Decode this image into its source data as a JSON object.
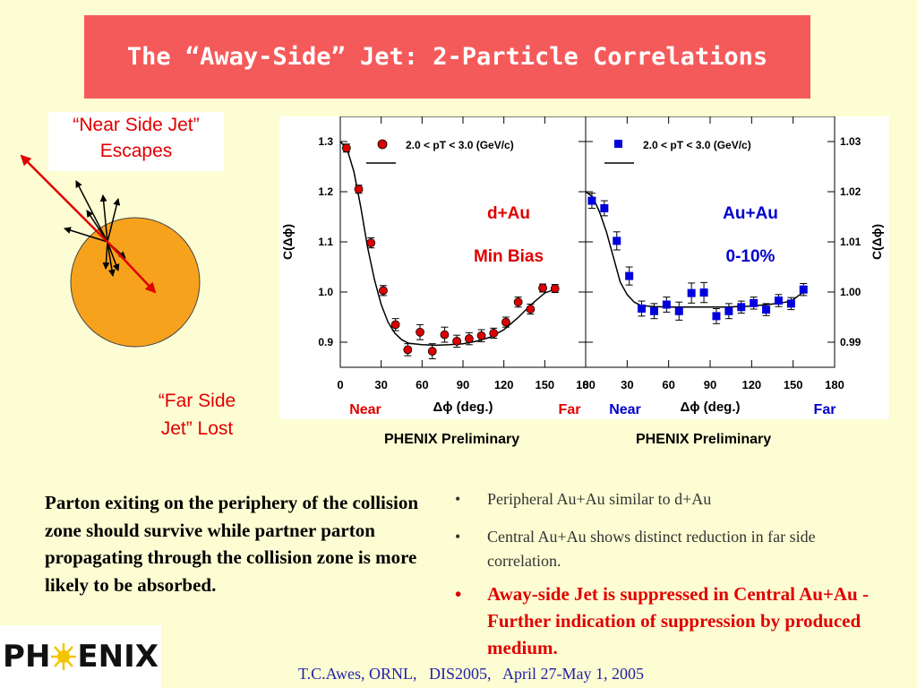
{
  "slide": {
    "title": "The “Away-Side” Jet: 2-Particle Correlations",
    "near_side_label": [
      "“Near Side Jet”",
      "Escapes"
    ],
    "far_side_label": [
      "“Far Side",
      "Jet” Lost"
    ],
    "left_paragraph": "Parton exiting on the periphery of the collision zone should survive while partner parton propagating through the collision zone is more likely to be absorbed.",
    "bullets": [
      {
        "bullet": "•",
        "text": "Peripheral Au+Au similar to d+Au"
      },
      {
        "bullet": "•",
        "text": "Central Au+Au shows distinct reduction in far side correlation."
      },
      {
        "bullet": "•",
        "text": "Away-side Jet is suppressed in Central Au+Au - Further indication of suppression by produced medium."
      }
    ],
    "logo": {
      "left": "PH",
      "right": "ENIX"
    },
    "footer": "T.C.Awes, ORNL,   DIS2005,   April 27-May 1, 2005",
    "colors": {
      "title_bg": "#f55a5a",
      "slide_bg": "#fdfdd3",
      "accent_red": "#e00000",
      "accent_blue": "#0000cc",
      "disk": "#f7a21d"
    }
  },
  "chart_data": [
    {
      "type": "scatter",
      "legend": "2.0 < pT < 3.0 (GeV/c)",
      "system": "d+Au",
      "centrality": "Min Bias",
      "ylabel": "C(Δϕ)",
      "xlabel": "Δϕ (deg.)",
      "x_ticks": [
        "0",
        "30",
        "60",
        "90",
        "120",
        "150",
        "180"
      ],
      "y_ticks": [
        "1.3",
        "1.2",
        "1.1",
        "1.0",
        "0.9"
      ],
      "xlim": [
        0,
        180
      ],
      "ylim": [
        0.85,
        1.35
      ],
      "near_label": "Near",
      "far_label": "Far",
      "footer_label": "PHENIX Preliminary",
      "marker": "circle",
      "color": "#dd0000",
      "points": [
        {
          "x": 4.5,
          "y": 1.287,
          "err": 0.008
        },
        {
          "x": 13.5,
          "y": 1.205,
          "err": 0.008
        },
        {
          "x": 22.5,
          "y": 1.098,
          "err": 0.01
        },
        {
          "x": 31.5,
          "y": 1.003,
          "err": 0.01
        },
        {
          "x": 40.5,
          "y": 0.935,
          "err": 0.012
        },
        {
          "x": 49.5,
          "y": 0.885,
          "err": 0.012
        },
        {
          "x": 58.5,
          "y": 0.92,
          "err": 0.015
        },
        {
          "x": 67.5,
          "y": 0.882,
          "err": 0.015
        },
        {
          "x": 76.5,
          "y": 0.915,
          "err": 0.015
        },
        {
          "x": 85.5,
          "y": 0.902,
          "err": 0.012
        },
        {
          "x": 94.5,
          "y": 0.907,
          "err": 0.012
        },
        {
          "x": 103.5,
          "y": 0.913,
          "err": 0.012
        },
        {
          "x": 112.5,
          "y": 0.918,
          "err": 0.01
        },
        {
          "x": 121.5,
          "y": 0.94,
          "err": 0.01
        },
        {
          "x": 130.5,
          "y": 0.98,
          "err": 0.01
        },
        {
          "x": 139.5,
          "y": 0.966,
          "err": 0.01
        },
        {
          "x": 148.5,
          "y": 1.008,
          "err": 0.008
        },
        {
          "x": 157.5,
          "y": 1.007,
          "err": 0.008
        }
      ],
      "fit": [
        [
          0,
          1.3
        ],
        [
          5,
          1.285
        ],
        [
          10,
          1.24
        ],
        [
          15,
          1.17
        ],
        [
          20,
          1.09
        ],
        [
          25,
          1.025
        ],
        [
          30,
          0.975
        ],
        [
          35,
          0.94
        ],
        [
          40,
          0.918
        ],
        [
          45,
          0.905
        ],
        [
          50,
          0.898
        ],
        [
          60,
          0.895
        ],
        [
          70,
          0.894
        ],
        [
          80,
          0.895
        ],
        [
          90,
          0.897
        ],
        [
          100,
          0.902
        ],
        [
          110,
          0.91
        ],
        [
          120,
          0.925
        ],
        [
          130,
          0.948
        ],
        [
          140,
          0.975
        ],
        [
          150,
          0.998
        ],
        [
          160,
          1.008
        ]
      ]
    },
    {
      "type": "scatter",
      "legend": "2.0 < pT < 3.0 (GeV/c)",
      "system": "Au+Au",
      "centrality": "0-10%",
      "ylabel": "C(Δϕ)",
      "xlabel": "Δϕ (deg.)",
      "x_ticks": [
        "0",
        "30",
        "60",
        "90",
        "120",
        "150",
        "180"
      ],
      "y_ticks": [
        "1.03",
        "1.02",
        "1.01",
        "1.00",
        "0.99"
      ],
      "xlim": [
        0,
        180
      ],
      "ylim": [
        0.985,
        1.035
      ],
      "near_label": "Near",
      "far_label": "Far",
      "footer_label": "PHENIX Preliminary",
      "marker": "square",
      "color": "#0000dd",
      "points": [
        {
          "x": 4.5,
          "y": 1.0182,
          "err": 0.0015
        },
        {
          "x": 13.5,
          "y": 1.0167,
          "err": 0.0015
        },
        {
          "x": 22.5,
          "y": 1.0102,
          "err": 0.0018
        },
        {
          "x": 31.5,
          "y": 1.0032,
          "err": 0.0018
        },
        {
          "x": 40.5,
          "y": 0.9967,
          "err": 0.0015
        },
        {
          "x": 49.5,
          "y": 0.9962,
          "err": 0.0015
        },
        {
          "x": 58.5,
          "y": 0.9975,
          "err": 0.0015
        },
        {
          "x": 67.5,
          "y": 0.9962,
          "err": 0.0018
        },
        {
          "x": 76.5,
          "y": 0.9998,
          "err": 0.002
        },
        {
          "x": 85.5,
          "y": 0.9999,
          "err": 0.002
        },
        {
          "x": 94.5,
          "y": 0.9952,
          "err": 0.0015
        },
        {
          "x": 103.5,
          "y": 0.9962,
          "err": 0.0015
        },
        {
          "x": 112.5,
          "y": 0.997,
          "err": 0.0012
        },
        {
          "x": 121.5,
          "y": 0.9978,
          "err": 0.0012
        },
        {
          "x": 130.5,
          "y": 0.9965,
          "err": 0.0012
        },
        {
          "x": 139.5,
          "y": 0.9983,
          "err": 0.0012
        },
        {
          "x": 148.5,
          "y": 0.9977,
          "err": 0.0012
        },
        {
          "x": 157.5,
          "y": 1.0005,
          "err": 0.0012
        }
      ],
      "fit": [
        [
          0,
          1.02
        ],
        [
          5,
          1.019
        ],
        [
          10,
          1.016
        ],
        [
          15,
          1.012
        ],
        [
          20,
          1.007
        ],
        [
          25,
          1.002
        ],
        [
          30,
          0.9995
        ],
        [
          35,
          0.998
        ],
        [
          40,
          0.9973
        ],
        [
          50,
          0.9971
        ],
        [
          60,
          0.997
        ],
        [
          80,
          0.997
        ],
        [
          100,
          0.997
        ],
        [
          120,
          0.9972
        ],
        [
          135,
          0.9976
        ],
        [
          145,
          0.998
        ],
        [
          150,
          0.9985
        ],
        [
          160,
          1.0005
        ]
      ]
    }
  ]
}
